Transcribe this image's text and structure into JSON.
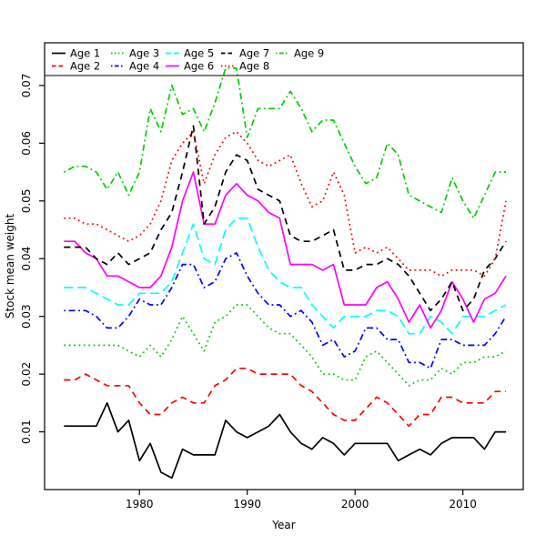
{
  "figure": {
    "background": "#ffffff",
    "axis_color": "#000000",
    "text_color": "#000000"
  },
  "chart_data": {
    "type": "line",
    "title": "",
    "xlabel": "Year",
    "ylabel": "Stock mean weight",
    "x_ticks": [
      1980,
      1990,
      2000,
      2010
    ],
    "y_ticks": [
      0.01,
      0.02,
      0.03,
      0.04,
      0.05,
      0.06,
      0.07
    ],
    "xlim": [
      1971.2,
      2015.6
    ],
    "ylim": [
      0.0,
      0.0774
    ],
    "grid": false,
    "legend_position": "top-left",
    "legend_columns": 5,
    "x": [
      1973,
      1974,
      1975,
      1976,
      1977,
      1978,
      1979,
      1980,
      1981,
      1982,
      1983,
      1984,
      1985,
      1986,
      1987,
      1988,
      1989,
      1990,
      1991,
      1992,
      1993,
      1994,
      1995,
      1996,
      1997,
      1998,
      1999,
      2000,
      2001,
      2002,
      2003,
      2004,
      2005,
      2006,
      2007,
      2008,
      2009,
      2010,
      2011,
      2012,
      2013,
      2014
    ],
    "series": [
      {
        "name": "Age 1",
        "color": "#000000",
        "linetype": "solid",
        "values": [
          0.011,
          0.011,
          0.011,
          0.011,
          0.015,
          0.01,
          0.012,
          0.005,
          0.008,
          0.003,
          0.002,
          0.007,
          0.006,
          0.006,
          0.006,
          0.012,
          0.01,
          0.009,
          0.01,
          0.011,
          0.013,
          0.01,
          0.008,
          0.007,
          0.009,
          0.008,
          0.006,
          0.008,
          0.008,
          0.008,
          0.008,
          0.005,
          0.006,
          0.007,
          0.006,
          0.008,
          0.009,
          0.009,
          0.009,
          0.007,
          0.01,
          0.01
        ]
      },
      {
        "name": "Age 2",
        "color": "#FF0000",
        "linetype": "dashed",
        "values": [
          0.019,
          0.019,
          0.02,
          0.019,
          0.018,
          0.018,
          0.018,
          0.015,
          0.013,
          0.013,
          0.015,
          0.016,
          0.015,
          0.015,
          0.018,
          0.019,
          0.021,
          0.021,
          0.02,
          0.02,
          0.02,
          0.02,
          0.018,
          0.017,
          0.015,
          0.013,
          0.012,
          0.012,
          0.014,
          0.016,
          0.015,
          0.013,
          0.011,
          0.013,
          0.013,
          0.016,
          0.016,
          0.015,
          0.015,
          0.015,
          0.017,
          0.017
        ]
      },
      {
        "name": "Age 3",
        "color": "#00CD00",
        "linetype": "dotted",
        "values": [
          0.025,
          0.025,
          0.025,
          0.025,
          0.025,
          0.025,
          0.024,
          0.023,
          0.025,
          0.023,
          0.026,
          0.03,
          0.027,
          0.024,
          0.029,
          0.03,
          0.032,
          0.032,
          0.03,
          0.028,
          0.027,
          0.027,
          0.025,
          0.023,
          0.02,
          0.02,
          0.019,
          0.019,
          0.023,
          0.024,
          0.022,
          0.02,
          0.018,
          0.019,
          0.019,
          0.021,
          0.02,
          0.022,
          0.022,
          0.023,
          0.023,
          0.024
        ]
      },
      {
        "name": "Age 4",
        "color": "#0000FF",
        "linetype": "dotdash",
        "values": [
          0.031,
          0.031,
          0.031,
          0.03,
          0.028,
          0.028,
          0.03,
          0.033,
          0.032,
          0.032,
          0.035,
          0.039,
          0.039,
          0.035,
          0.036,
          0.04,
          0.041,
          0.037,
          0.034,
          0.032,
          0.032,
          0.03,
          0.031,
          0.029,
          0.025,
          0.026,
          0.023,
          0.024,
          0.028,
          0.028,
          0.026,
          0.026,
          0.022,
          0.022,
          0.021,
          0.026,
          0.026,
          0.025,
          0.025,
          0.025,
          0.027,
          0.03
        ]
      },
      {
        "name": "Age 5",
        "color": "#00FFFF",
        "linetype": "longdash",
        "values": [
          0.035,
          0.035,
          0.035,
          0.034,
          0.033,
          0.032,
          0.032,
          0.034,
          0.034,
          0.034,
          0.036,
          0.041,
          0.046,
          0.04,
          0.039,
          0.045,
          0.047,
          0.047,
          0.042,
          0.038,
          0.036,
          0.035,
          0.035,
          0.032,
          0.03,
          0.028,
          0.03,
          0.03,
          0.03,
          0.031,
          0.031,
          0.03,
          0.027,
          0.027,
          0.03,
          0.029,
          0.027,
          0.03,
          0.03,
          0.03,
          0.031,
          0.032
        ]
      },
      {
        "name": "Age 6",
        "color": "#FF00FF",
        "linetype": "solid",
        "values": [
          0.043,
          0.043,
          0.041,
          0.04,
          0.037,
          0.037,
          0.036,
          0.035,
          0.035,
          0.037,
          0.042,
          0.05,
          0.055,
          0.046,
          0.046,
          0.051,
          0.053,
          0.051,
          0.05,
          0.048,
          0.047,
          0.039,
          0.039,
          0.039,
          0.038,
          0.039,
          0.032,
          0.032,
          0.032,
          0.035,
          0.036,
          0.033,
          0.029,
          0.032,
          0.028,
          0.031,
          0.036,
          0.033,
          0.029,
          0.033,
          0.034,
          0.037
        ]
      },
      {
        "name": "Age 7",
        "color": "#000000",
        "linetype": "dashed",
        "values": [
          0.042,
          0.042,
          0.042,
          0.04,
          0.039,
          0.041,
          0.039,
          0.04,
          0.041,
          0.045,
          0.048,
          0.055,
          0.063,
          0.046,
          0.049,
          0.055,
          0.058,
          0.057,
          0.052,
          0.051,
          0.05,
          0.044,
          0.043,
          0.043,
          0.044,
          0.045,
          0.038,
          0.038,
          0.039,
          0.039,
          0.04,
          0.039,
          0.037,
          0.034,
          0.031,
          0.033,
          0.036,
          0.031,
          0.033,
          0.038,
          0.04,
          0.043
        ]
      },
      {
        "name": "Age 8",
        "color": "#FF0000",
        "linetype": "dotted",
        "values": [
          0.047,
          0.047,
          0.046,
          0.046,
          0.045,
          0.044,
          0.043,
          0.044,
          0.046,
          0.05,
          0.057,
          0.06,
          0.062,
          0.053,
          0.058,
          0.061,
          0.062,
          0.06,
          0.057,
          0.056,
          0.057,
          0.058,
          0.053,
          0.049,
          0.05,
          0.055,
          0.051,
          0.041,
          0.042,
          0.041,
          0.042,
          0.04,
          0.038,
          0.038,
          0.038,
          0.037,
          0.038,
          0.038,
          0.038,
          0.037,
          0.04,
          0.05
        ]
      },
      {
        "name": "Age 9",
        "color": "#00CD00",
        "linetype": "dotdash",
        "values": [
          0.055,
          0.056,
          0.056,
          0.055,
          0.052,
          0.055,
          0.051,
          0.055,
          0.066,
          0.062,
          0.07,
          0.065,
          0.066,
          0.062,
          0.067,
          0.073,
          0.073,
          0.061,
          0.066,
          0.066,
          0.066,
          0.069,
          0.066,
          0.062,
          0.064,
          0.064,
          0.06,
          0.056,
          0.053,
          0.054,
          0.06,
          0.058,
          0.051,
          0.05,
          0.049,
          0.048,
          0.054,
          0.05,
          0.047,
          0.051,
          0.055,
          0.055
        ]
      }
    ]
  }
}
